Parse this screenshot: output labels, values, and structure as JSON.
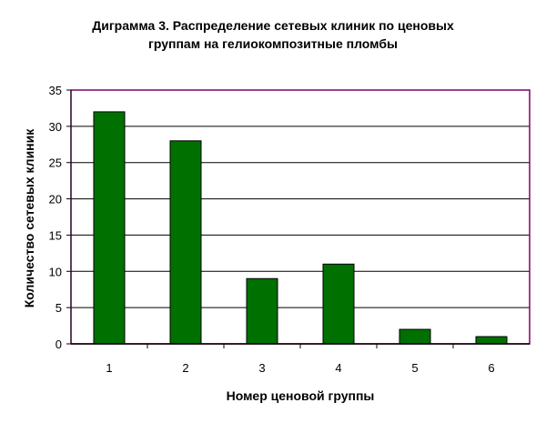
{
  "chart_data": {
    "type": "bar",
    "title_lines": [
      "Диграмма 3. Распределение сетевых клиник по ценовых",
      "группам на гелиокомпозитные пломбы"
    ],
    "xlabel": "Номер ценовой группы",
    "ylabel": "Количество сетевых клиник",
    "categories": [
      "1",
      "2",
      "3",
      "4",
      "5",
      "6"
    ],
    "values": [
      32,
      28,
      9,
      11,
      2,
      1
    ],
    "ylim": [
      0,
      35
    ],
    "yticks": [
      "0",
      "5",
      "10",
      "15",
      "20",
      "25",
      "30",
      "35"
    ],
    "grid": true,
    "legend": "none",
    "bar_color": "#007000",
    "plot_border_color": "#800060"
  }
}
